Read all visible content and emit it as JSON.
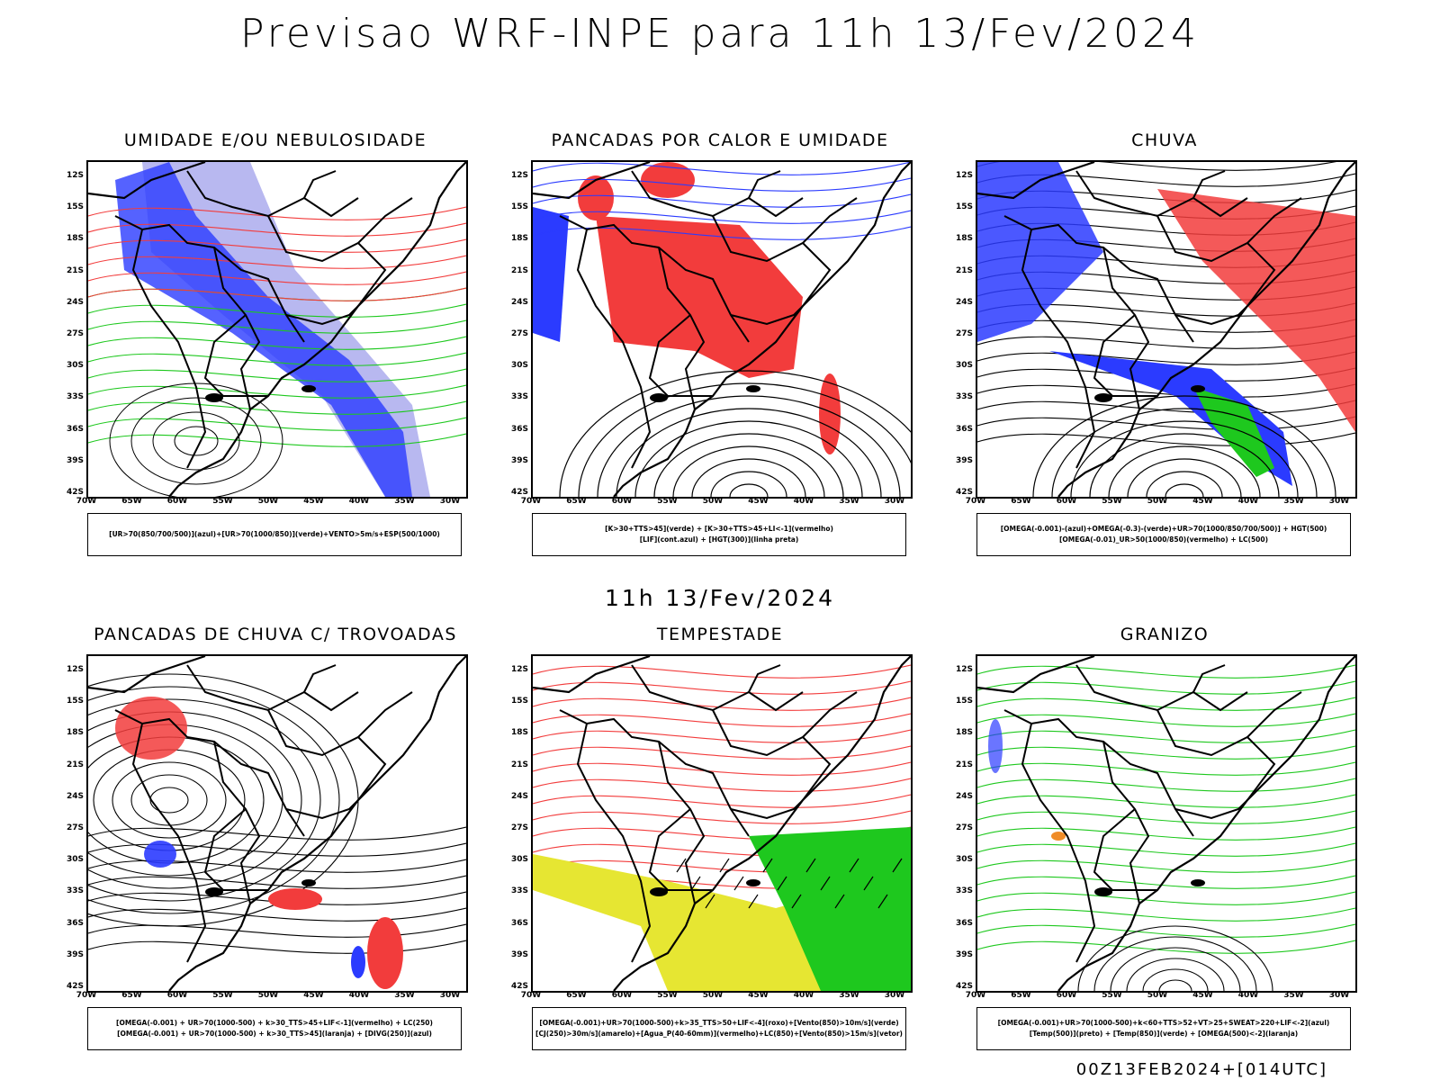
{
  "title": "Previsao WRF-INPE  para 11h 13/Fev/2024",
  "mid_title": "11h 13/Fev/2024",
  "footer": "00Z13FEB2024+[014UTC]",
  "lat_labels": [
    "12S",
    "15S",
    "18S",
    "21S",
    "24S",
    "27S",
    "30S",
    "33S",
    "36S",
    "39S",
    "42S"
  ],
  "lon_labels": [
    "70W",
    "65W",
    "60W",
    "55W",
    "50W",
    "45W",
    "40W",
    "35W",
    "30W"
  ],
  "colors": {
    "blue": "#2b3bff",
    "green": "#1ec81e",
    "red": "#f23c3c",
    "light_blue": "#b8b8f0",
    "yellow": "#e6e632",
    "orange": "#f08c28",
    "dark_teal": "#3c5a50"
  },
  "panels": [
    {
      "title": "UMIDADE E/OU NEBULOSIDADE",
      "legend_lines": [
        "[UR>70(850/700/500)](azul)+[UR>70(1000/850)](verde)+VENTO>5m/s+ESP(500/1000)"
      ]
    },
    {
      "title": "PANCADAS POR CALOR E UMIDADE",
      "legend_lines": [
        "[K>30+TTS>45](verde)  +  [K>30+TTS>45+LI<-1](vermelho)",
        "[LIF](cont.azul)  +  [HGT(300)](linha preta)"
      ]
    },
    {
      "title": "CHUVA",
      "legend_lines": [
        "[OMEGA(-0.001)-(azul)+OMEGA(-0.3)-(verde)+UR>70(1000/850/700/500)]  +  HGT(500)",
        "[OMEGA(-0.01)_UR>50(1000/850)(vermelho)  +  LC(500)"
      ]
    },
    {
      "title": "PANCADAS DE CHUVA C/ TROVOADAS",
      "legend_lines": [
        "[OMEGA(-0.001)  +  UR>70(1000-500)  +  k>30_TTS>45+LIF<-1](vermelho)  +  LC(250)",
        "[OMEGA(-0.001)  +  UR>70(1000-500)  +  k>30_TTS>45](laranja)  +  [DIVG(250)](azul)"
      ]
    },
    {
      "title": "TEMPESTADE",
      "legend_lines": [
        "[OMEGA(-0.001)+UR>70(1000-500)+k>35_TTS>50+LIF<-4](roxo)+[Vento(850)>10m/s](verde)",
        "[CJ(250)>30m/s](amarelo)+[Agua_P(40-60mm)](vermelho)+LC(850)+[Vento(850)>15m/s](vetor)"
      ]
    },
    {
      "title": "GRANIZO",
      "legend_lines": [
        "[OMEGA(-0.001)+UR>70(1000-500)+k<60+TTS>52+VT>25+SWEAT>220+LIF<-2](azul)",
        "[Temp(500)](preto)  +  [Temp(850)](verde)  +  [OMEGA(500)<-2](laranja)"
      ]
    }
  ]
}
